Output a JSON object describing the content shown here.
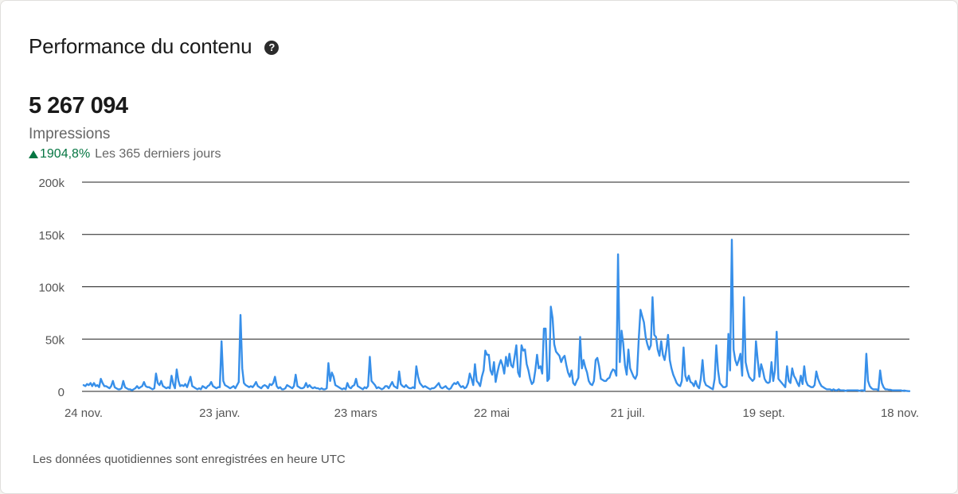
{
  "header": {
    "title": "Performance du contenu",
    "help_icon": "?"
  },
  "metric": {
    "value": "5 267 094",
    "label": "Impressions",
    "change": "1904,8%",
    "period": "Les 365 derniers jours",
    "change_color": "#057642"
  },
  "footer": {
    "note": "Les données quotidiennes sont enregistrées en heure UTC"
  },
  "chart_data": {
    "type": "line",
    "title": "",
    "xlabel": "",
    "ylabel": "",
    "grid": true,
    "line_color": "#378fe9",
    "ylim": [
      0,
      200000
    ],
    "y_ticks": [
      0,
      50000,
      100000,
      150000,
      200000
    ],
    "y_tick_labels": [
      "0",
      "50k",
      "100k",
      "150k",
      "200k"
    ],
    "x_tick_labels": [
      "24 nov.",
      "23 janv.",
      "23 mars",
      "22 mai",
      "21 juil.",
      "19 sept.",
      "18 nov."
    ],
    "series": [
      {
        "values": [
          6000,
          5000,
          7000,
          6000,
          8000,
          5000,
          8000,
          5000,
          6000,
          4000,
          12000,
          8000,
          5000,
          5000,
          4000,
          3000,
          5000,
          10000,
          4000,
          3000,
          2000,
          2000,
          3000,
          10000,
          4000,
          3000,
          2000,
          2000,
          1000,
          2000,
          3000,
          5000,
          3000,
          4000,
          5000,
          9000,
          5000,
          4000,
          4000,
          3000,
          2000,
          3000,
          17000,
          8000,
          6000,
          10000,
          5000,
          4000,
          3000,
          4000,
          3000,
          15000,
          7000,
          3000,
          21000,
          10000,
          5000,
          6000,
          5000,
          7000,
          4000,
          9000,
          14000,
          5000,
          4000,
          3000,
          2000,
          3000,
          2000,
          5000,
          4000,
          3000,
          5000,
          6000,
          9000,
          5000,
          4000,
          3000,
          4000,
          4000,
          48000,
          10000,
          6000,
          5000,
          4000,
          3000,
          4000,
          5000,
          3000,
          6000,
          9000,
          73000,
          22000,
          8000,
          6000,
          5000,
          4000,
          5000,
          4000,
          6000,
          9000,
          5000,
          4000,
          3000,
          5000,
          6000,
          5000,
          3000,
          7000,
          6000,
          8000,
          14000,
          5000,
          3000,
          4000,
          2000,
          2000,
          3000,
          6000,
          5000,
          4000,
          3000,
          5000,
          16000,
          5000,
          4000,
          3000,
          3000,
          4000,
          8000,
          4000,
          6000,
          4000,
          3000,
          4000,
          3000,
          3000,
          2000,
          3000,
          2000,
          2000,
          3000,
          27000,
          10000,
          18000,
          14000,
          6000,
          5000,
          4000,
          3000,
          2000,
          3000,
          2000,
          8000,
          4000,
          3000,
          5000,
          6000,
          12000,
          5000,
          4000,
          3000,
          2000,
          4000,
          3000,
          5000,
          33000,
          10000,
          8000,
          6000,
          3000,
          4000,
          3000,
          2000,
          3000,
          5000,
          5000,
          3000,
          6000,
          9000,
          5000,
          4000,
          3000,
          19000,
          7000,
          5000,
          4000,
          6000,
          4000,
          3000,
          3000,
          4000,
          3000,
          24000,
          14000,
          8000,
          6000,
          4000,
          5000,
          4000,
          3000,
          2000,
          3000,
          3000,
          4000,
          6000,
          8000,
          4000,
          3000,
          4000,
          5000,
          3000,
          2000,
          3000,
          6000,
          8000,
          7000,
          9000,
          6000,
          4000,
          5000,
          3000,
          4000,
          8000,
          17000,
          12000,
          6000,
          26000,
          10000,
          8000,
          5000,
          14000,
          20000,
          39000,
          35000,
          35000,
          20000,
          16000,
          28000,
          9000,
          18000,
          25000,
          30000,
          25000,
          17000,
          33000,
          24000,
          36000,
          25000,
          23000,
          33000,
          44000,
          18000,
          14000,
          44000,
          39000,
          40000,
          26000,
          20000,
          12000,
          7000,
          9000,
          20000,
          35000,
          22000,
          24000,
          17000,
          60000,
          60000,
          10000,
          12000,
          81000,
          70000,
          45000,
          38000,
          36000,
          34000,
          28000,
          32000,
          34000,
          25000,
          18000,
          14000,
          20000,
          8000,
          6000,
          10000,
          13000,
          52000,
          22000,
          30000,
          23000,
          18000,
          10000,
          7000,
          6000,
          10000,
          30000,
          32000,
          24000,
          12000,
          11000,
          10000,
          10000,
          12000,
          13000,
          18000,
          21000,
          20000,
          15000,
          131000,
          28000,
          58000,
          46000,
          25000,
          16000,
          40000,
          22000,
          18000,
          14000,
          12000,
          16000,
          50000,
          78000,
          72000,
          66000,
          52000,
          45000,
          40000,
          44000,
          90000,
          54000,
          52000,
          40000,
          34000,
          48000,
          35000,
          30000,
          40000,
          54000,
          30000,
          22000,
          16000,
          12000,
          8000,
          6000,
          5000,
          10000,
          42000,
          15000,
          10000,
          15000,
          9000,
          8000,
          5000,
          10000,
          5000,
          3000,
          12000,
          30000,
          10000,
          6000,
          5000,
          4000,
          3000,
          2000,
          12000,
          44000,
          20000,
          8000,
          6000,
          4000,
          4000,
          5000,
          55000,
          20000,
          145000,
          40000,
          30000,
          25000,
          30000,
          36000,
          15000,
          90000,
          28000,
          20000,
          14000,
          12000,
          10000,
          12000,
          48000,
          30000,
          14000,
          26000,
          20000,
          12000,
          9000,
          8000,
          9000,
          28000,
          10000,
          20000,
          57000,
          12000,
          10000,
          8000,
          6000,
          4000,
          24000,
          10000,
          8000,
          22000,
          15000,
          12000,
          8000,
          5000,
          15000,
          7000,
          24000,
          10000,
          6000,
          5000,
          4000,
          4000,
          6000,
          19000,
          12000,
          8000,
          5000,
          4000,
          3000,
          2000,
          2000,
          2000,
          1000,
          2000,
          1000,
          1000,
          2000,
          1000,
          1000,
          1000,
          500,
          1000,
          1000,
          1000,
          1000,
          1000,
          1000,
          1000,
          500,
          1000,
          1000,
          500,
          36000,
          10000,
          5000,
          3000,
          2000,
          2000,
          2000,
          1000,
          20000,
          8000,
          4000,
          2000,
          2000,
          1500,
          1500,
          1000,
          1000,
          1000,
          1000,
          1000,
          1000,
          500,
          800,
          500,
          300,
          200
        ]
      }
    ]
  }
}
